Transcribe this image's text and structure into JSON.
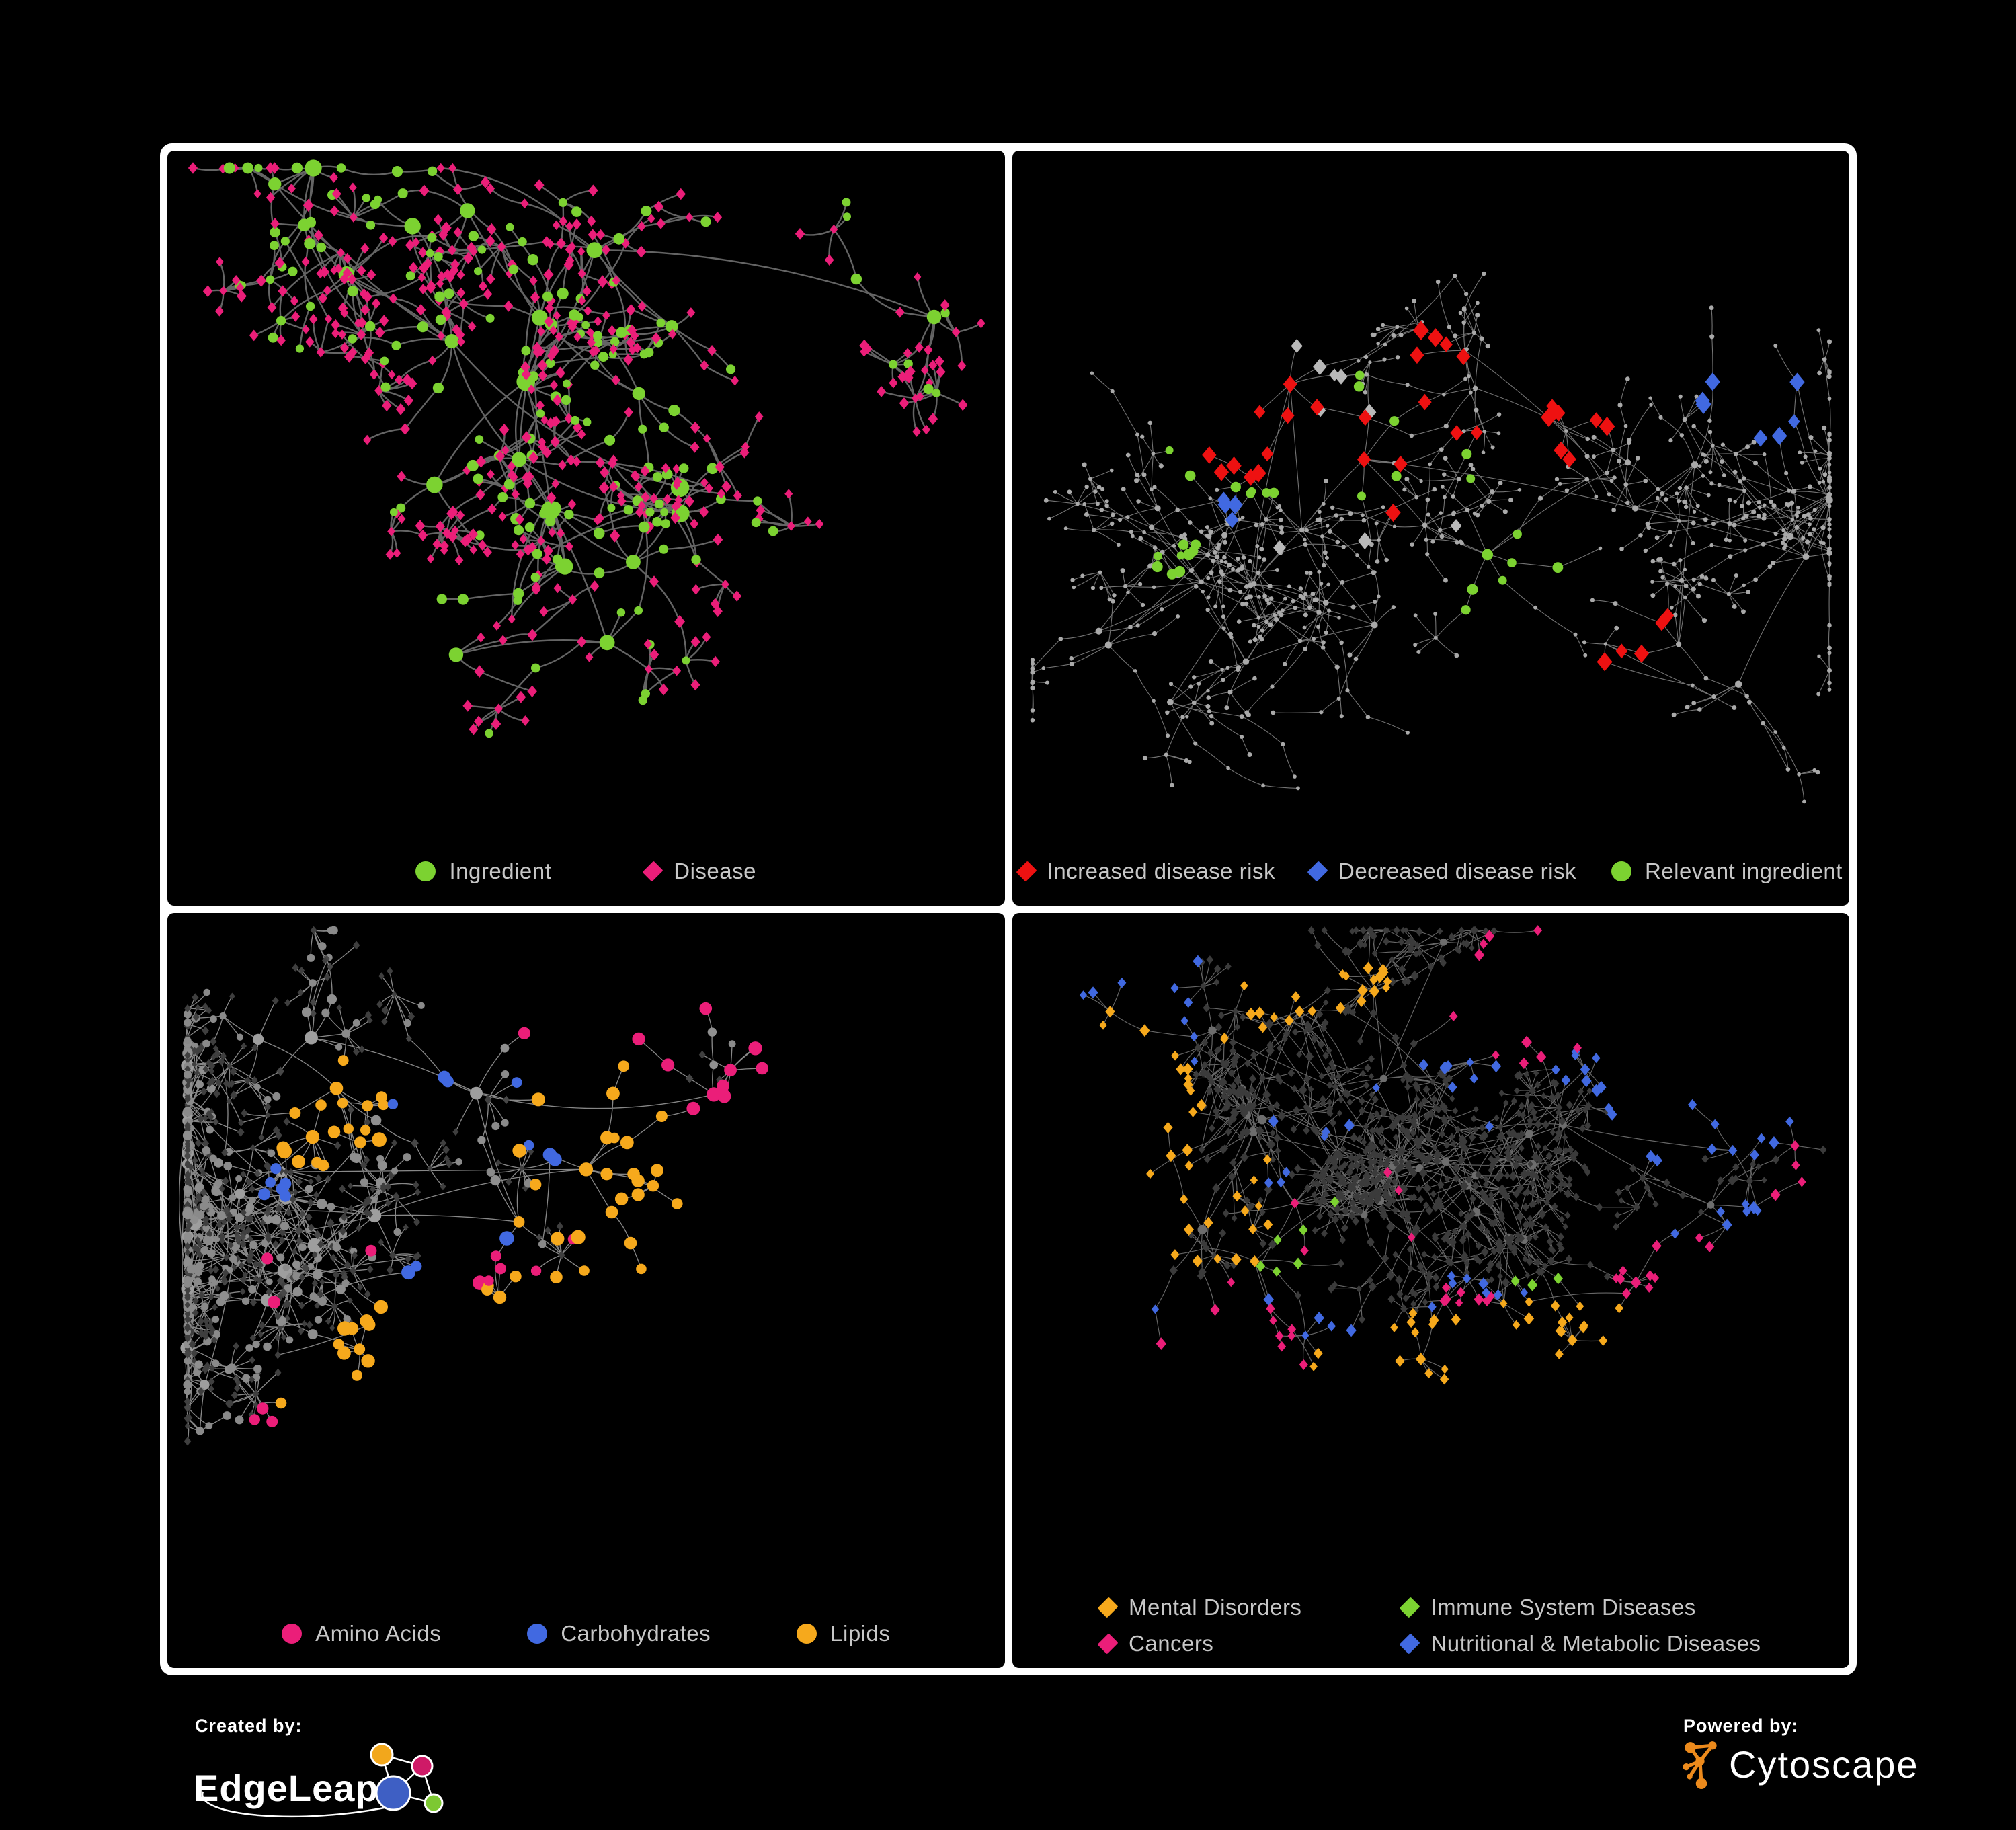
{
  "page": {
    "background": "#000000",
    "board_border_color": "#ffffff",
    "legend_text_color": "#c7c7c7"
  },
  "panels": [
    {
      "id": "ingredient-disease",
      "legend": [
        {
          "label": "Ingredient",
          "shape": "circle",
          "color": "#7cd231"
        },
        {
          "label": "Disease",
          "shape": "diamond",
          "color": "#eb1e79"
        }
      ],
      "network": {
        "seed": 17,
        "hubs": 24,
        "hub_dist": 150,
        "branch_min": 3,
        "branch_max": 7,
        "step": 56,
        "chain_max": 3,
        "fan_prob": 0.5,
        "fan_min": 3,
        "fan_max": 8,
        "extra_edges": 55,
        "extra_dist": 210,
        "curve": 0.35,
        "edge": {
          "color": "#6f6f6f",
          "width": 2.4,
          "opacity": 0.9
        },
        "hub_style": {
          "shape": "circle",
          "color": "#7cd231",
          "size": 10.5,
          "jitter": 0.5
        },
        "mid_styles": [
          {
            "shape": "circle",
            "color": "#7cd231",
            "size": 7.2,
            "weight": 5
          },
          {
            "shape": "diamond",
            "color": "#eb1e79",
            "size": 8,
            "weight": 5
          }
        ],
        "leaf_styles": [
          {
            "shape": "diamond",
            "color": "#eb1e79",
            "size": 7.5,
            "weight": 8
          },
          {
            "shape": "circle",
            "color": "#7cd231",
            "size": 6.5,
            "weight": 2
          }
        ],
        "highlights": []
      }
    },
    {
      "id": "disease-risk",
      "legend": [
        {
          "label": "Increased disease risk",
          "shape": "diamond",
          "color": "#ee1111"
        },
        {
          "label": "Decreased disease risk",
          "shape": "diamond",
          "color": "#4169e1"
        },
        {
          "label": "Relevant ingredient",
          "shape": "circle",
          "color": "#7cd231"
        }
      ],
      "network": {
        "seed": 29,
        "hubs": 30,
        "hub_dist": 150,
        "branch_min": 4,
        "branch_max": 8,
        "step": 50,
        "chain_max": 4,
        "fan_prob": 0.45,
        "fan_min": 3,
        "fan_max": 7,
        "extra_edges": 70,
        "extra_dist": 190,
        "curve": 0.15,
        "edge": {
          "color": "#878787",
          "width": 1.1,
          "opacity": 0.85
        },
        "hub_style": {
          "shape": "circle",
          "color": "#a9a9a9",
          "size": 4.2,
          "jitter": 0.4
        },
        "mid_styles": [
          {
            "shape": "circle",
            "color": "#a9a9a9",
            "size": 3,
            "weight": 1
          }
        ],
        "leaf_styles": [
          {
            "shape": "circle",
            "color": "#a9a9a9",
            "size": 3,
            "weight": 1
          }
        ],
        "highlights": [
          {
            "shape": "diamond",
            "color": "#ee1111",
            "size": 12,
            "count": 34,
            "foci": [
              [
                0.47,
                0.45,
                0.09
              ],
              [
                0.3,
                0.4,
                0.03
              ],
              [
                0.66,
                0.42,
                0.04
              ],
              [
                0.75,
                0.72,
                0.05
              ],
              [
                0.52,
                0.28,
                0.03
              ]
            ]
          },
          {
            "shape": "diamond",
            "color": "#4169e1",
            "size": 12,
            "count": 11,
            "foci": [
              [
                0.29,
                0.5,
                0.05
              ],
              [
                0.88,
                0.35,
                0.02
              ]
            ]
          },
          {
            "shape": "diamond",
            "color": "#b9b9b9",
            "size": 11,
            "count": 9,
            "foci": [
              [
                0.42,
                0.52,
                0.12
              ],
              [
                0.3,
                0.36,
                0.03
              ]
            ]
          },
          {
            "shape": "circle",
            "color": "#7cd231",
            "size": 7,
            "count": 30,
            "foci": [
              [
                0.45,
                0.47,
                0.1
              ],
              [
                0.26,
                0.42,
                0.06
              ],
              [
                0.6,
                0.62,
                0.04
              ],
              [
                0.2,
                0.6,
                0.03
              ]
            ]
          }
        ]
      }
    },
    {
      "id": "macronutrients",
      "legend": [
        {
          "label": "Amino Acids",
          "shape": "circle",
          "color": "#eb1e79"
        },
        {
          "label": "Carbohydrates",
          "shape": "circle",
          "color": "#4169e1"
        },
        {
          "label": "Lipids",
          "shape": "circle",
          "color": "#f6a91c"
        }
      ],
      "network": {
        "seed": 41,
        "hubs": 26,
        "hub_dist": 150,
        "branch_min": 3,
        "branch_max": 8,
        "step": 54,
        "chain_max": 3,
        "fan_prob": 0.5,
        "fan_min": 4,
        "fan_max": 10,
        "extra_edges": 130,
        "extra_dist": 175,
        "curve": 0.25,
        "edge": {
          "color": "#a9a9a9",
          "width": 1.35,
          "opacity": 0.8
        },
        "hub_style": {
          "shape": "circle",
          "color": "#9e9e9e",
          "size": 8.5,
          "jitter": 0.5
        },
        "mid_styles": [
          {
            "shape": "circle",
            "color": "#8f8f8f",
            "size": 6.5,
            "weight": 6
          },
          {
            "shape": "diamond",
            "color": "#474747",
            "size": 6,
            "weight": 4
          }
        ],
        "leaf_styles": [
          {
            "shape": "diamond",
            "color": "#3f3f3f",
            "size": 5.5,
            "weight": 7
          },
          {
            "shape": "circle",
            "color": "#8a8a8a",
            "size": 5.5,
            "weight": 3
          }
        ],
        "highlights": [
          {
            "shape": "circle",
            "color": "#f6a91c",
            "size": 9,
            "count": 60,
            "foci": [
              [
                0.49,
                0.33,
                0.08
              ],
              [
                0.43,
                0.52,
                0.1
              ],
              [
                0.3,
                0.72,
                0.09
              ],
              [
                0.62,
                0.55,
                0.06
              ],
              [
                0.2,
                0.3,
                0.06
              ]
            ]
          },
          {
            "shape": "circle",
            "color": "#eb1e79",
            "size": 9,
            "count": 24,
            "foci": [
              [
                0.18,
                0.52,
                0.06
              ],
              [
                0.45,
                0.82,
                0.06
              ],
              [
                0.63,
                0.66,
                0.05
              ],
              [
                0.78,
                0.38,
                0.05
              ],
              [
                0.3,
                0.92,
                0.04
              ],
              [
                0.55,
                0.12,
                0.03
              ],
              [
                0.88,
                0.42,
                0.03
              ]
            ]
          },
          {
            "shape": "circle",
            "color": "#4169e1",
            "size": 9,
            "count": 16,
            "foci": [
              [
                0.5,
                0.32,
                0.05
              ],
              [
                0.12,
                0.4,
                0.02
              ],
              [
                0.66,
                0.68,
                0.04
              ],
              [
                0.36,
                0.6,
                0.03
              ],
              [
                0.3,
                0.25,
                0.04
              ]
            ]
          }
        ]
      }
    },
    {
      "id": "disease-categories",
      "legend": [
        {
          "label": "Mental Disorders",
          "shape": "diamond",
          "color": "#f6a91c"
        },
        {
          "label": "Immune System Diseases",
          "shape": "diamond",
          "color": "#7cd231"
        },
        {
          "label": "Cancers",
          "shape": "diamond",
          "color": "#eb1e79"
        },
        {
          "label": "Nutritional & Metabolic Diseases",
          "shape": "diamond",
          "color": "#4169e1"
        }
      ],
      "network": {
        "seed": 53,
        "hubs": 30,
        "hub_dist": 145,
        "branch_min": 4,
        "branch_max": 8,
        "step": 50,
        "chain_max": 3,
        "fan_prob": 0.55,
        "fan_min": 4,
        "fan_max": 9,
        "extra_edges": 90,
        "extra_dist": 180,
        "curve": 0.2,
        "edge": {
          "color": "#8a8a8a",
          "width": 1.15,
          "opacity": 0.75
        },
        "hub_style": {
          "shape": "circle",
          "color": "#6d6d6d",
          "size": 6,
          "jitter": 0.4
        },
        "mid_styles": [
          {
            "shape": "diamond",
            "color": "#3b3b3b",
            "size": 6.5,
            "weight": 1
          }
        ],
        "leaf_styles": [
          {
            "shape": "diamond",
            "color": "#3b3b3b",
            "size": 5.5,
            "weight": 1
          }
        ],
        "highlights": [
          {
            "shape": "diamond",
            "color": "#f6a91c",
            "size": 8,
            "count": 85,
            "foci": [
              [
                0.23,
                0.43,
                0.09
              ],
              [
                0.3,
                0.14,
                0.05
              ],
              [
                0.12,
                0.28,
                0.04
              ],
              [
                0.42,
                0.1,
                0.03
              ],
              [
                0.5,
                0.88,
                0.02
              ],
              [
                0.65,
                0.8,
                0.02
              ]
            ]
          },
          {
            "shape": "diamond",
            "color": "#eb1e79",
            "size": 8,
            "count": 48,
            "foci": [
              [
                0.41,
                0.46,
                0.09
              ],
              [
                0.9,
                0.38,
                0.04
              ],
              [
                0.55,
                0.6,
                0.03
              ],
              [
                0.25,
                0.68,
                0.03
              ],
              [
                0.6,
                0.13,
                0.03
              ],
              [
                0.85,
                0.75,
                0.02
              ]
            ]
          },
          {
            "shape": "diamond",
            "color": "#4169e1",
            "size": 8,
            "count": 70,
            "foci": [
              [
                0.55,
                0.6,
                0.06
              ],
              [
                0.79,
                0.32,
                0.05
              ],
              [
                0.73,
                0.12,
                0.05
              ],
              [
                0.88,
                0.1,
                0.04
              ],
              [
                0.25,
                0.78,
                0.08
              ],
              [
                0.1,
                0.16,
                0.05
              ],
              [
                0.5,
                0.25,
                0.07
              ],
              [
                0.9,
                0.55,
                0.05
              ],
              [
                0.35,
                0.35,
                0.05
              ]
            ]
          },
          {
            "shape": "diamond",
            "color": "#7cd231",
            "size": 8,
            "count": 9,
            "foci": [
              [
                0.38,
                0.42,
                0.03
              ],
              [
                0.33,
                0.52,
                0.02
              ],
              [
                0.47,
                0.62,
                0.02
              ],
              [
                0.62,
                0.6,
                0.02
              ],
              [
                0.25,
                0.1,
                0.02
              ],
              [
                0.5,
                0.9,
                0.02
              ],
              [
                0.55,
                0.35,
                0.03
              ]
            ]
          }
        ]
      }
    }
  ],
  "footer": {
    "created_by": {
      "label": "Created by:",
      "brand": "EdgeLeap",
      "logo_colors": {
        "orange": "#f2a71c",
        "pink": "#cf1a67",
        "blue": "#3e5fc4",
        "green": "#7dc832"
      }
    },
    "powered_by": {
      "label": "Powered by:",
      "brand": "Cytoscape",
      "logo_color": "#ec8a1c"
    }
  }
}
